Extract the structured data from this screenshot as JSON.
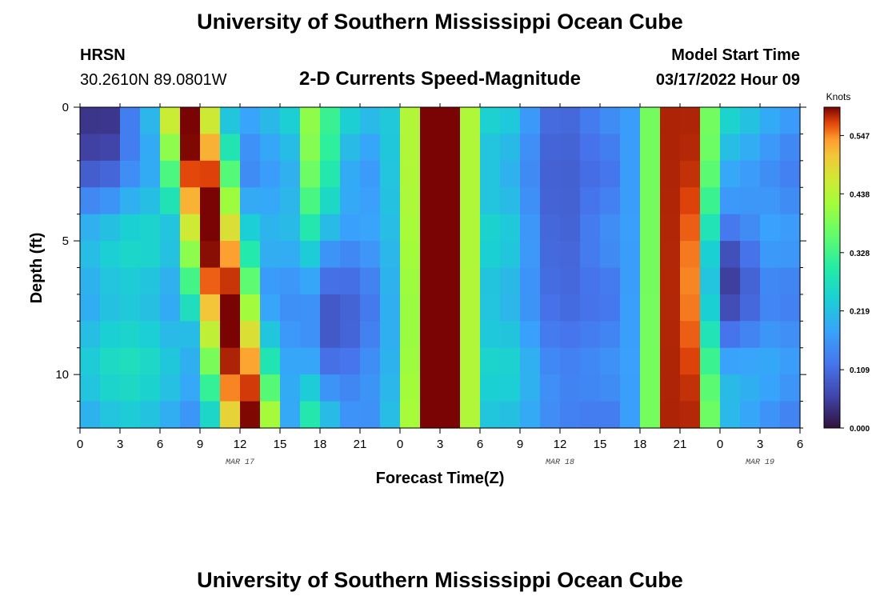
{
  "page": {
    "title": "University of Southern Mississippi Ocean Cube",
    "station": "HRSN",
    "location": "30.2610N  89.0801W",
    "subtitle": "2-D Currents Speed-Magnitude",
    "model_start_label": "Model Start Time",
    "model_start_value": "03/17/2022 Hour 09",
    "footer_title": "University of Southern Mississippi Ocean Cube"
  },
  "chart_data": {
    "type": "heatmap",
    "title": "2-D Currents Speed-Magnitude",
    "xlabel": "Forecast Time(Z)",
    "ylabel": "Depth (ft)",
    "x_ticks": [
      "0",
      "3",
      "6",
      "9",
      "12",
      "15",
      "18",
      "21",
      "0",
      "3",
      "6",
      "9",
      "12",
      "15",
      "18",
      "21",
      "0",
      "3",
      "6"
    ],
    "x_range_hours": [
      0,
      54
    ],
    "date_labels": [
      {
        "label": "MAR 17",
        "hour": 12
      },
      {
        "label": "MAR 18",
        "hour": 36
      },
      {
        "label": "MAR 19",
        "hour": 51
      }
    ],
    "y_ticks": [
      "0",
      "5",
      "10"
    ],
    "y_range_ft": [
      0,
      12
    ],
    "colorbar": {
      "unit": "Knots",
      "min": 0.0,
      "max": 0.6,
      "ticks": [
        "0.000",
        "0.109",
        "0.219",
        "0.328",
        "0.438",
        "0.547"
      ],
      "tick_values": [
        0.0,
        0.109,
        0.219,
        0.328,
        0.438,
        0.547
      ]
    },
    "grid": {
      "time_hours": [
        0,
        1.5,
        3,
        4.5,
        6,
        7.5,
        9,
        10.5,
        12,
        13.5,
        15,
        16.5,
        18,
        19.5,
        21,
        22.5,
        24,
        25.5,
        27,
        28.5,
        30,
        31.5,
        33,
        34.5,
        36,
        37.5,
        39,
        40.5,
        42,
        43.5,
        45,
        46.5,
        48,
        49.5,
        51,
        52.5,
        54
      ],
      "depth_levels_ft": [
        0,
        1,
        2,
        3,
        4,
        5,
        6,
        7,
        8,
        9,
        10,
        11,
        12
      ]
    },
    "structure": {
      "surface_depths_ft": [
        0,
        1,
        2,
        3,
        4,
        5,
        6,
        7,
        8,
        9,
        10,
        11,
        12
      ],
      "high_speed_bands": [
        {
          "name": "band-1",
          "center_hour": 8,
          "width_hours": 2.8,
          "peak_knots": 0.55,
          "tilt_hours_per_ft": 0.4
        },
        {
          "name": "band-2",
          "center_hour": 27,
          "width_hours": 3.4,
          "peak_knots": 0.58,
          "tilt_hours_per_ft": 0.0
        },
        {
          "name": "band-3",
          "center_hour": 45,
          "width_hours": 3.0,
          "peak_knots": 0.56,
          "tilt_hours_per_ft": 0.0
        },
        {
          "name": "band-4",
          "center_hour": 17.8,
          "width_hours": 1.5,
          "peak_knots": 0.4,
          "tilt_hours_per_ft": 0.0
        }
      ],
      "low_speed_zones": [
        {
          "name": "early-surface",
          "center_hour": 1.5,
          "center_depth_ft": 0.6,
          "radius_hours": 3,
          "radius_ft": 3,
          "min_knots": 0.03
        },
        {
          "name": "mid-night",
          "center_hour": 19,
          "center_depth_ft": 8,
          "radius_hours": 3.5,
          "radius_ft": 4,
          "min_knots": 0.08
        },
        {
          "name": "slack-2",
          "center_hour": 36,
          "center_depth_ft": 3,
          "radius_hours": 3,
          "radius_ft": 10,
          "min_knots": 0.09
        },
        {
          "name": "slack-3",
          "center_hour": 49,
          "center_depth_ft": 6.5,
          "radius_hours": 2,
          "radius_ft": 3,
          "min_knots": 0.05
        }
      ],
      "background_knots": 0.2
    }
  }
}
